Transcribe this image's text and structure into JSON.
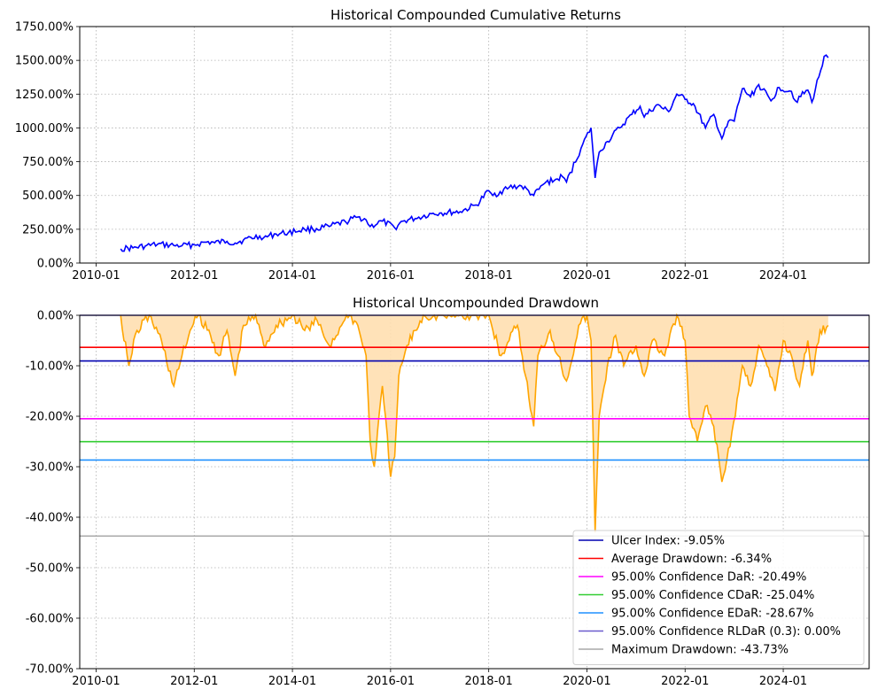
{
  "chart_data": [
    {
      "type": "line",
      "title": "Historical Compounded Cumulative Returns",
      "xlabel": "",
      "ylabel": "",
      "xlim": [
        "2009-09",
        "2025-10"
      ],
      "ylim": [
        0,
        1750
      ],
      "y_unit": "%",
      "grid": true,
      "x_tick_labels": [
        "2010-01",
        "2012-01",
        "2014-01",
        "2016-01",
        "2018-01",
        "2020-01",
        "2022-01",
        "2024-01"
      ],
      "y_tick_labels": [
        "0.00%",
        "250.00%",
        "500.00%",
        "750.00%",
        "1000.00%",
        "1250.00%",
        "1500.00%",
        "1750.00%"
      ],
      "series": [
        {
          "color": "#0000ff",
          "x": [
            "2010-07",
            "2010-10",
            "2011-01",
            "2011-04",
            "2011-08",
            "2011-10",
            "2012-01",
            "2012-04",
            "2012-06",
            "2012-09",
            "2012-11",
            "2013-01",
            "2013-05",
            "2013-06",
            "2013-09",
            "2013-12",
            "2014-04",
            "2014-06",
            "2014-10",
            "2015-02",
            "2015-05",
            "2015-07",
            "2015-08",
            "2015-11",
            "2016-02",
            "2016-04",
            "2016-07",
            "2016-11",
            "2017-01",
            "2017-06",
            "2017-10",
            "2018-01",
            "2018-02",
            "2018-06",
            "2018-09",
            "2018-12",
            "2019-03",
            "2019-05",
            "2019-07",
            "2019-08",
            "2019-12",
            "2020-02",
            "2020-03",
            "2020-04",
            "2020-06",
            "2020-09",
            "2020-12",
            "2021-02",
            "2021-03",
            "2021-06",
            "2021-09",
            "2021-11",
            "2022-01",
            "2022-03",
            "2022-06",
            "2022-08",
            "2022-10",
            "2022-12",
            "2023-01",
            "2023-03",
            "2023-05",
            "2023-07",
            "2023-10",
            "2023-12",
            "2024-03",
            "2024-04",
            "2024-07",
            "2024-08",
            "2024-11",
            "2024-12"
          ],
          "y": [
            105,
            112,
            125,
            138,
            130,
            128,
            135,
            155,
            150,
            160,
            148,
            170,
            200,
            188,
            215,
            225,
            250,
            250,
            270,
            305,
            340,
            320,
            270,
            310,
            260,
            310,
            330,
            365,
            370,
            380,
            430,
            535,
            500,
            560,
            570,
            500,
            600,
            610,
            640,
            600,
            880,
            1000,
            630,
            820,
            900,
            1000,
            1100,
            1160,
            1080,
            1170,
            1120,
            1250,
            1210,
            1180,
            1000,
            1100,
            920,
            1060,
            1050,
            1290,
            1230,
            1320,
            1200,
            1300,
            1270,
            1200,
            1280,
            1190,
            1530,
            1520
          ]
        }
      ]
    },
    {
      "type": "area",
      "title": "Historical Uncompounded Drawdown",
      "xlabel": "",
      "ylabel": "",
      "xlim": [
        "2009-09",
        "2025-10"
      ],
      "ylim": [
        -70,
        0
      ],
      "y_unit": "%",
      "grid": true,
      "legend_position": "bottom-right",
      "x_tick_labels": [
        "2010-01",
        "2012-01",
        "2014-01",
        "2016-01",
        "2018-01",
        "2020-01",
        "2022-01",
        "2024-01"
      ],
      "y_tick_labels": [
        "0.00%",
        "-10.00%",
        "-20.00%",
        "-30.00%",
        "-40.00%",
        "-50.00%",
        "-60.00%",
        "-70.00%"
      ],
      "drawdown": {
        "color": "#ffa500",
        "fill_color": "#ffdfb0",
        "x": [
          "2010-07",
          "2010-09",
          "2010-11",
          "2011-02",
          "2011-05",
          "2011-08",
          "2011-10",
          "2011-12",
          "2012-02",
          "2012-05",
          "2012-07",
          "2012-09",
          "2012-11",
          "2013-01",
          "2013-04",
          "2013-06",
          "2013-09",
          "2014-01",
          "2014-04",
          "2014-07",
          "2014-10",
          "2015-01",
          "2015-03",
          "2015-05",
          "2015-07",
          "2015-08",
          "2015-09",
          "2015-11",
          "2016-01",
          "2016-02",
          "2016-03",
          "2016-05",
          "2016-07",
          "2016-09",
          "2017-01",
          "2017-06",
          "2017-10",
          "2018-01",
          "2018-02",
          "2018-04",
          "2018-06",
          "2018-08",
          "2018-10",
          "2018-12",
          "2019-01",
          "2019-04",
          "2019-06",
          "2019-08",
          "2019-11",
          "2020-01",
          "2020-02",
          "2020-03",
          "2020-04",
          "2020-06",
          "2020-08",
          "2020-10",
          "2021-01",
          "2021-03",
          "2021-05",
          "2021-08",
          "2021-11",
          "2022-01",
          "2022-02",
          "2022-04",
          "2022-06",
          "2022-08",
          "2022-10",
          "2022-12",
          "2023-03",
          "2023-05",
          "2023-07",
          "2023-09",
          "2023-11",
          "2024-01",
          "2024-03",
          "2024-05",
          "2024-07",
          "2024-08",
          "2024-10",
          "2024-12"
        ],
        "y": [
          0,
          -10,
          -3,
          0,
          -5,
          -14,
          -8,
          -3,
          0,
          -4,
          -8,
          -3,
          -12,
          -2,
          0,
          -6,
          -2,
          0,
          -3,
          -1,
          -6,
          -2,
          0,
          -2,
          -8,
          -25,
          -30,
          -14,
          -32,
          -28,
          -12,
          -6,
          -3,
          0,
          0,
          0,
          0,
          0,
          -3,
          -8,
          -5,
          -2,
          -12,
          -22,
          -8,
          -3,
          -8,
          -13,
          -2,
          0,
          -5,
          -43,
          -20,
          -10,
          -4,
          -10,
          -6,
          -12,
          -5,
          -8,
          0,
          -5,
          -20,
          -25,
          -18,
          -22,
          -33,
          -26,
          -10,
          -14,
          -6,
          -10,
          -15,
          -5,
          -8,
          -14,
          -5,
          -12,
          -3,
          -2
        ]
      },
      "reference_lines": [
        {
          "label": "Ulcer Index: -9.05%",
          "value": -9.05,
          "color": "#0000b0"
        },
        {
          "label": "Average Drawdown: -6.34%",
          "value": -6.34,
          "color": "#ff0000"
        },
        {
          "label": "95.00% Confidence DaR: -20.49%",
          "value": -20.49,
          "color": "#ff00ff"
        },
        {
          "label": "95.00% Confidence CDaR: -25.04%",
          "value": -25.04,
          "color": "#32cd32"
        },
        {
          "label": "95.00% Confidence EDaR: -28.67%",
          "value": -28.67,
          "color": "#1e90ff"
        },
        {
          "label": "95.00% Confidence RLDaR (0.3): 0.00%",
          "value": 0,
          "color": "#6a5acd"
        },
        {
          "label": "Maximum Drawdown: -43.73%",
          "value": -43.73,
          "color": "#a9a9a9"
        }
      ]
    }
  ]
}
